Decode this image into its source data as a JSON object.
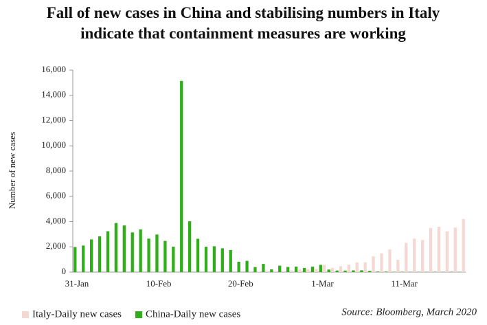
{
  "chart_data": {
    "type": "bar",
    "title": [
      "Fall of new cases in China and stabilising numbers in Italy",
      "indicate that containment measures are working"
    ],
    "y_label": "Number of new cases",
    "source": "Source: Bloomberg, March 2020",
    "categories": [
      "31-Jan",
      null,
      null,
      null,
      null,
      null,
      null,
      null,
      null,
      null,
      "10-Feb",
      null,
      null,
      null,
      null,
      null,
      null,
      null,
      null,
      null,
      "20-Feb",
      null,
      null,
      null,
      null,
      null,
      null,
      null,
      null,
      null,
      "1-Mar",
      null,
      null,
      null,
      null,
      null,
      null,
      null,
      null,
      null,
      "11-Mar",
      null,
      null,
      null,
      null,
      null,
      null,
      null
    ],
    "series": [
      {
        "name": "Italy-Daily new cases",
        "color": "#f6d8d2",
        "values": [
          null,
          null,
          null,
          null,
          null,
          null,
          null,
          null,
          null,
          null,
          null,
          null,
          null,
          null,
          null,
          null,
          null,
          null,
          null,
          null,
          null,
          17,
          42,
          93,
          74,
          93,
          131,
          202,
          233,
          240,
          566,
          342,
          466,
          587,
          769,
          778,
          1247,
          1492,
          1797,
          977,
          2313,
          2651,
          2547,
          3497,
          3590,
          3233,
          3526,
          4207
        ]
      },
      {
        "name": "China-Daily new cases",
        "color": "#2fae1a",
        "values": [
          1982,
          2102,
          2590,
          2829,
          3235,
          3887,
          3694,
          3143,
          3385,
          2652,
          2973,
          2467,
          2015,
          15141,
          4022,
          2640,
          2009,
          2048,
          1886,
          1749,
          820,
          892,
          397,
          648,
          214,
          508,
          406,
          433,
          327,
          427,
          573,
          202,
          125,
          119,
          139,
          143,
          99,
          44,
          40,
          19,
          24,
          15,
          8,
          11,
          20,
          16,
          21,
          13
        ]
      }
    ],
    "ylim": [
      0,
      16000
    ],
    "yticks": [
      0,
      {
        "value": 2000,
        "label": "2,000"
      },
      {
        "value": 4000,
        "label": "4,000"
      },
      {
        "value": 6000,
        "label": "6,000"
      },
      {
        "value": 8000,
        "label": "8,000"
      },
      {
        "value": 10000,
        "label": "10,000"
      },
      {
        "value": 12000,
        "label": "12,000"
      },
      {
        "value": 14000,
        "label": "14,000"
      },
      {
        "value": 16000,
        "label": "16,000"
      }
    ],
    "legend": "bottom-left"
  }
}
